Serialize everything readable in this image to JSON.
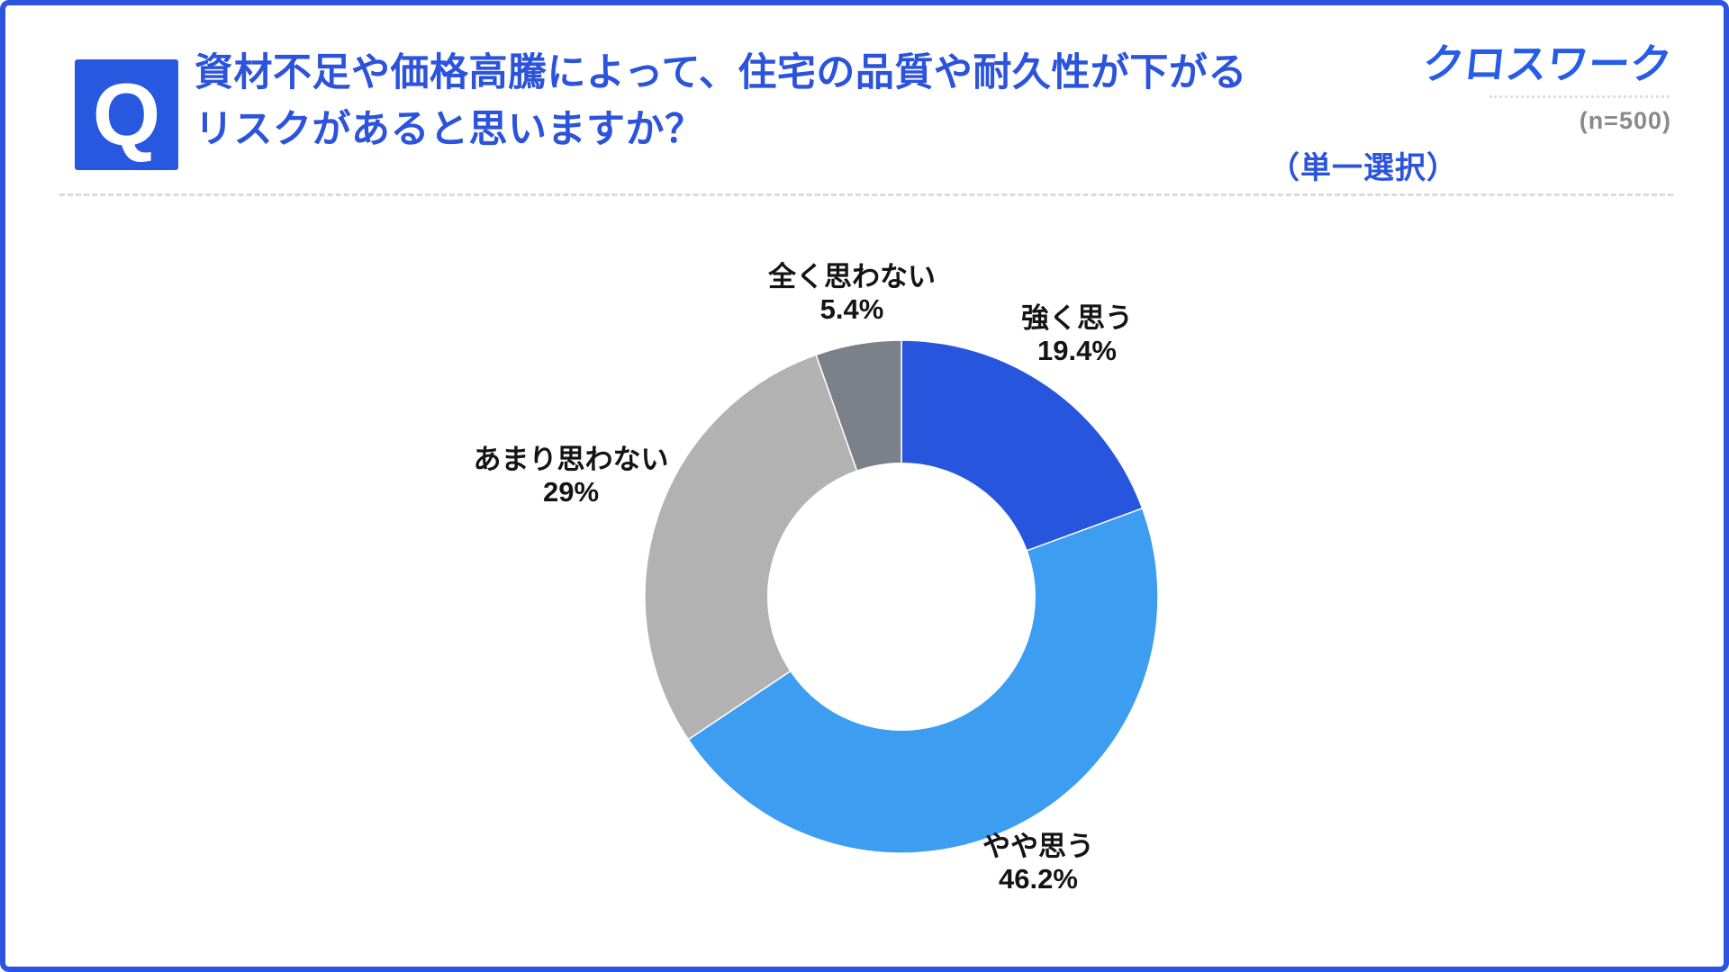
{
  "page": {
    "q_badge": "Q",
    "title_line1": "資材不足や価格高騰によって、住宅の品質や耐久性が下がる",
    "title_line2": "リスクがあると思いますか？",
    "selection_note": "（単一選択）",
    "logo_text": "クロスワーク",
    "sample_size": "(n=500)"
  },
  "colors": {
    "border_blue": "#2B55DE",
    "title_blue": "#2B53DB",
    "logo_blue": "#275CE8",
    "label_black": "#141414",
    "sample_gray": "#8A8A8A",
    "divider_gray": "#DBDBDB"
  },
  "chart_data": {
    "type": "pie",
    "subtype": "donut",
    "title": "",
    "start_angle_deg": 0,
    "direction": "clockwise",
    "inner_radius_ratio": 0.52,
    "n": 500,
    "categories": [
      "強く思う",
      "やや思う",
      "あまり思わない",
      "全く思わない"
    ],
    "values": [
      19.4,
      46.2,
      29,
      5.4
    ],
    "slices": [
      {
        "label": "強く思う",
        "value": 19.4,
        "pct_label": "19.4%",
        "color": "#2855DE"
      },
      {
        "label": "やや思う",
        "value": 46.2,
        "pct_label": "46.2%",
        "color": "#3D9DF0"
      },
      {
        "label": "あまり思わない",
        "value": 29,
        "pct_label": "29%",
        "color": "#B3B2B3"
      },
      {
        "label": "全く思わない",
        "value": 5.4,
        "pct_label": "5.4%",
        "color": "#7C8089"
      }
    ]
  }
}
